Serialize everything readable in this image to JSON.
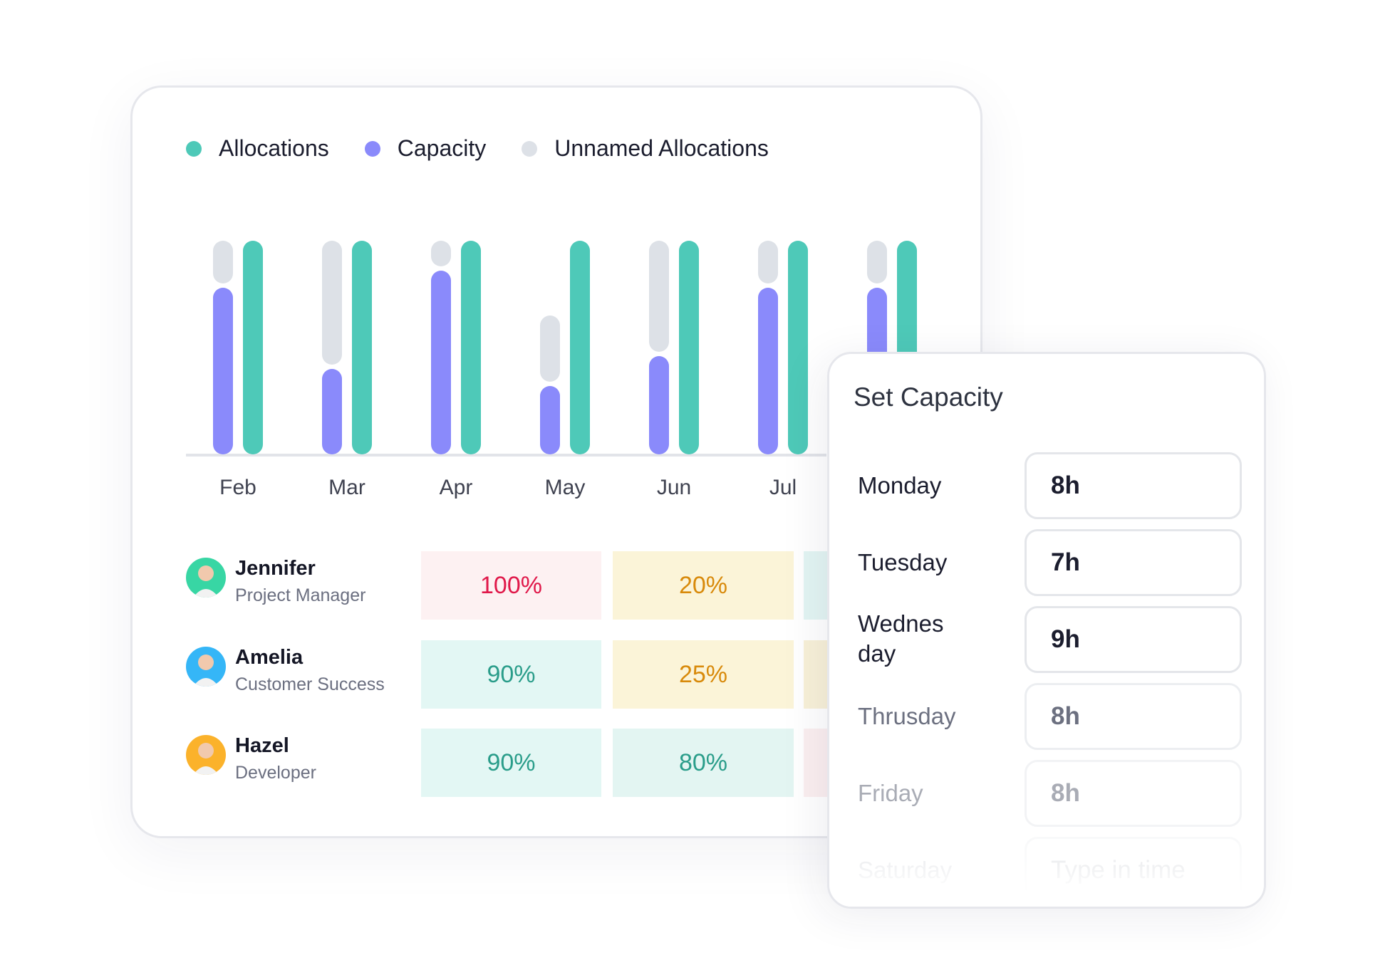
{
  "legend": [
    {
      "label": "Allocations",
      "color": "#4ec9b8"
    },
    {
      "label": "Capacity",
      "color": "#8a8afb"
    },
    {
      "label": "Unnamed Allocations",
      "color": "#dde1e7"
    }
  ],
  "chart_data": {
    "type": "bar",
    "categories": [
      "Feb",
      "Mar",
      "Apr",
      "May",
      "Jun",
      "Jul",
      ""
    ],
    "series": [
      {
        "name": "Capacity",
        "color": "#8a8afb",
        "values": [
          0.78,
          0.4,
          0.86,
          0.32,
          0.46,
          0.78,
          0.78
        ]
      },
      {
        "name": "Unnamed Allocations",
        "color": "#dde1e7",
        "values": [
          1.0,
          1.0,
          1.0,
          0.65,
          1.0,
          1.0,
          1.0
        ]
      },
      {
        "name": "Allocations",
        "color": "#4ec9b8",
        "values": [
          1.0,
          1.0,
          1.0,
          1.0,
          1.0,
          1.0,
          1.0
        ]
      }
    ],
    "ylim": [
      0,
      1
    ],
    "grid": false,
    "legend": "top-left"
  },
  "people": [
    {
      "name": "Jennifer",
      "role": "Project Manager",
      "avatar_color": "#38d6a4",
      "cells": [
        {
          "text": "100%",
          "bg": "#fdf1f2",
          "fg": "#e0194a"
        },
        {
          "text": "20%",
          "bg": "#fbf4d8",
          "fg": "#d88a0b"
        },
        {
          "text": "",
          "bg": "#e3f5f3",
          "fg": "#2a9d8a"
        }
      ]
    },
    {
      "name": "Amelia",
      "role": "Customer Success",
      "avatar_color": "#35b6f7",
      "cells": [
        {
          "text": "90%",
          "bg": "#e3f7f4",
          "fg": "#2a9d8a"
        },
        {
          "text": "25%",
          "bg": "#fbf4d8",
          "fg": "#d88a0b"
        },
        {
          "text": "",
          "bg": "#f8f1d8",
          "fg": "#d88a0b"
        }
      ]
    },
    {
      "name": "Hazel",
      "role": "Developer",
      "avatar_color": "#fbb22b",
      "cells": [
        {
          "text": "90%",
          "bg": "#e3f7f4",
          "fg": "#2a9d8a"
        },
        {
          "text": "80%",
          "bg": "#e3f5f2",
          "fg": "#2a9d8a"
        },
        {
          "text": "",
          "bg": "#fbeff0",
          "fg": "#e0194a"
        }
      ]
    }
  ],
  "panel": {
    "title": "Set Capacity",
    "days": [
      {
        "label": "Monday",
        "value": "8h",
        "placeholder": ""
      },
      {
        "label": "Tuesday",
        "value": "7h",
        "placeholder": ""
      },
      {
        "label": "Wednes\nday",
        "value": "9h",
        "placeholder": ""
      },
      {
        "label": "Thrusday",
        "value": "8h",
        "placeholder": ""
      },
      {
        "label": "Friday",
        "value": "8h",
        "placeholder": ""
      },
      {
        "label": "Saturday",
        "value": "",
        "placeholder": "Type in time"
      }
    ]
  }
}
